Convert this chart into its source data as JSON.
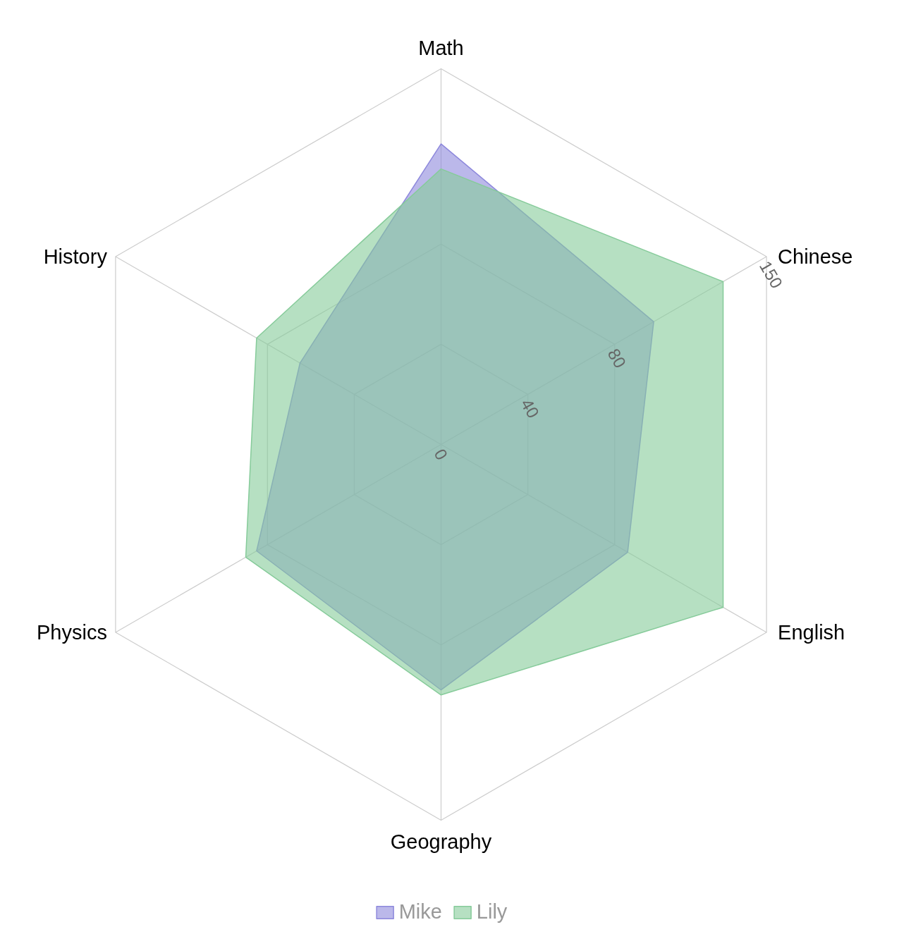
{
  "chart_data": {
    "type": "radar",
    "categories": [
      "Math",
      "Chinese",
      "English",
      "Geography",
      "Physics",
      "History"
    ],
    "ylim": [
      0,
      150
    ],
    "yticks": [
      0,
      40,
      80,
      150
    ],
    "legend": "bottom",
    "grid": true,
    "series": [
      {
        "name": "Mike",
        "color": "#8d88dc",
        "values": [
          120,
          98,
          86,
          98,
          85,
          65
        ]
      },
      {
        "name": "Lily",
        "color": "#86cb9a",
        "values": [
          110,
          130,
          130,
          100,
          90,
          85
        ]
      }
    ]
  }
}
